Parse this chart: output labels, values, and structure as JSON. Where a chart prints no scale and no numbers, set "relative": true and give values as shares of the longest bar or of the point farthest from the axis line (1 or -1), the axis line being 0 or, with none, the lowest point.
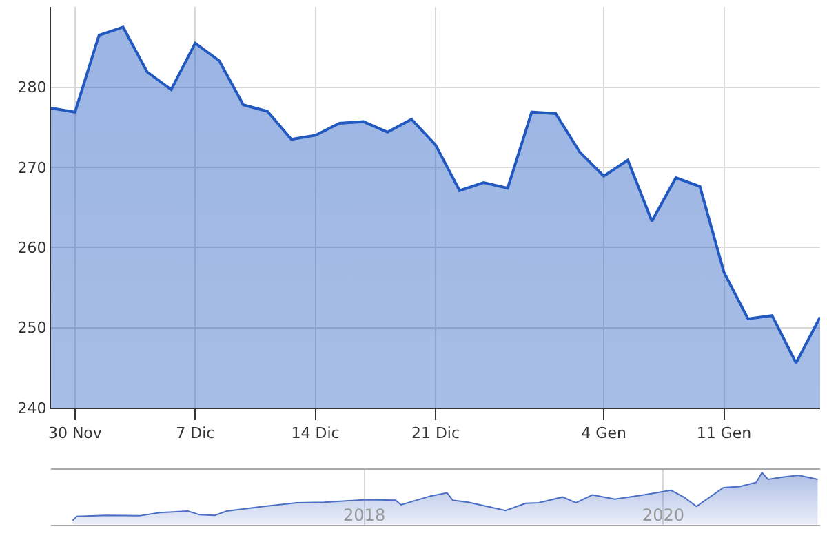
{
  "chart_data": [
    {
      "type": "area",
      "categories": [
        null,
        "30 Nov",
        null,
        null,
        null,
        null,
        "7 Dic",
        null,
        null,
        null,
        null,
        "14 Dic",
        null,
        null,
        null,
        null,
        "21 Dic",
        null,
        null,
        null,
        null,
        null,
        null,
        "4 Gen",
        null,
        null,
        null,
        null,
        "11 Gen",
        null,
        null,
        null,
        null
      ],
      "series": [
        {
          "color": "#2159c0",
          "values": [
            277.4,
            276.9,
            286.5,
            287.5,
            281.9,
            279.7,
            285.5,
            283.3,
            277.8,
            277.0,
            273.5,
            274.0,
            275.5,
            275.7,
            274.4,
            276.0,
            272.8,
            267.1,
            268.1,
            267.4,
            276.9,
            276.7,
            271.9,
            268.9,
            270.9,
            263.3,
            268.7,
            267.6,
            256.9,
            251.1,
            251.5,
            245.6,
            251.3
          ]
        }
      ],
      "ylim": [
        240,
        290
      ],
      "yticks": [
        240,
        250,
        260,
        270,
        280
      ],
      "grid": true,
      "marker": "none",
      "line_style": "solid"
    },
    {
      "type": "area",
      "relative": true,
      "x": [
        "2016-01-20",
        "2016-01-30",
        "2016-04-10",
        "2016-07-01",
        "2016-08-20",
        "2016-10-27",
        "2016-11-25",
        "2017-01-01",
        "2017-01-30",
        "2017-05-01",
        "2017-07-20",
        "2017-09-25",
        "2018-01-05",
        "2018-03-18",
        "2018-04-01",
        "2018-06-12",
        "2018-07-22",
        "2018-08-05",
        "2018-09-12",
        "2018-12-12",
        "2019-01-30",
        "2019-03-03",
        "2019-04-30",
        "2019-06-02",
        "2019-07-12",
        "2019-09-05",
        "2019-11-20",
        "2020-01-20",
        "2020-02-22",
        "2020-03-22",
        "2020-05-27",
        "2020-07-05",
        "2020-08-15",
        "2020-08-29",
        "2020-09-13",
        "2020-10-15",
        "2020-11-26",
        "2021-01-12"
      ],
      "series": [
        {
          "color": "#4a6fc4",
          "values": [
            0.08,
            0.16,
            0.18,
            0.17,
            0.23,
            0.26,
            0.19,
            0.18,
            0.26,
            0.35,
            0.42,
            0.43,
            0.48,
            0.47,
            0.38,
            0.55,
            0.61,
            0.47,
            0.43,
            0.27,
            0.41,
            0.42,
            0.53,
            0.42,
            0.57,
            0.49,
            0.58,
            0.66,
            0.52,
            0.35,
            0.71,
            0.73,
            0.81,
            1,
            0.87,
            0.91,
            0.95,
            0.87
          ]
        }
      ],
      "xlim": [
        "2015-11-28",
        "2021-01-18"
      ],
      "xticks": [
        {
          "value": "2018-01-01",
          "label": "2018"
        },
        {
          "value": "2020-01-01",
          "label": "2020"
        }
      ],
      "grid": "x",
      "marker": "none",
      "line_style": "solid"
    }
  ]
}
